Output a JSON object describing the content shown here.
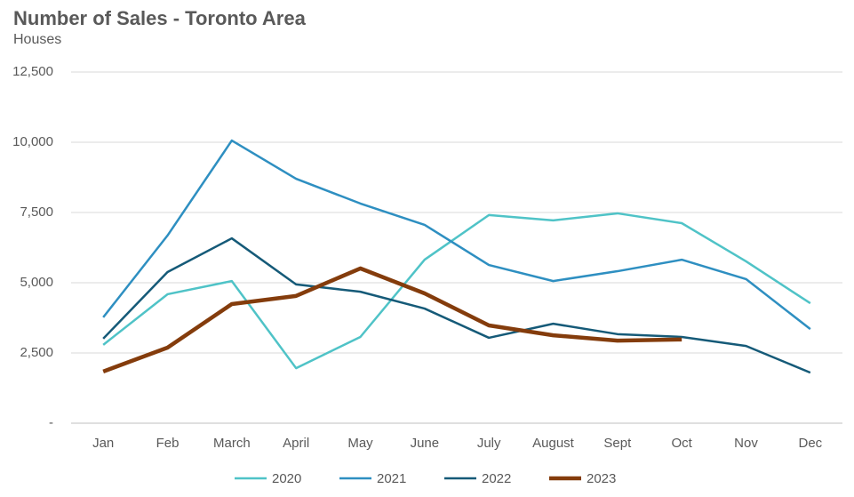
{
  "chart_data": {
    "type": "line",
    "title": "Number of Sales - Toronto Area",
    "subtitle": "Houses",
    "categories": [
      "Jan",
      "Feb",
      "March",
      "April",
      "May",
      "June",
      "July",
      "August",
      "Sept",
      "Oct",
      "Nov",
      "Dec"
    ],
    "series": [
      {
        "name": "2020",
        "color": "#4fc3c7",
        "width": 2.5,
        "values": [
          2790,
          4590,
          5060,
          1960,
          3070,
          5820,
          7410,
          7220,
          7470,
          7120,
          5760,
          4270
        ]
      },
      {
        "name": "2021",
        "color": "#2e8fc1",
        "width": 2.5,
        "values": [
          3770,
          6680,
          10060,
          8700,
          7820,
          7060,
          5630,
          5060,
          5410,
          5820,
          5130,
          3350
        ]
      },
      {
        "name": "2022",
        "color": "#155a78",
        "width": 2.5,
        "values": [
          3010,
          5380,
          6580,
          4940,
          4680,
          4080,
          3040,
          3540,
          3170,
          3070,
          2750,
          1800
        ]
      },
      {
        "name": "2023",
        "color": "#843c0c",
        "width": 4.5,
        "values": [
          1840,
          2690,
          4240,
          4530,
          5510,
          4620,
          3480,
          3130,
          2940,
          2980,
          null,
          null
        ]
      }
    ],
    "ylim": [
      0,
      12500
    ],
    "yticks": [
      {
        "value": 0,
        "label": "-"
      },
      {
        "value": 2500,
        "label": "2,500"
      },
      {
        "value": 5000,
        "label": "5,000"
      },
      {
        "value": 7500,
        "label": "7,500"
      },
      {
        "value": 10000,
        "label": "10,000"
      },
      {
        "value": 12500,
        "label": "12,500"
      }
    ],
    "grid": true,
    "legend": "bottom"
  }
}
